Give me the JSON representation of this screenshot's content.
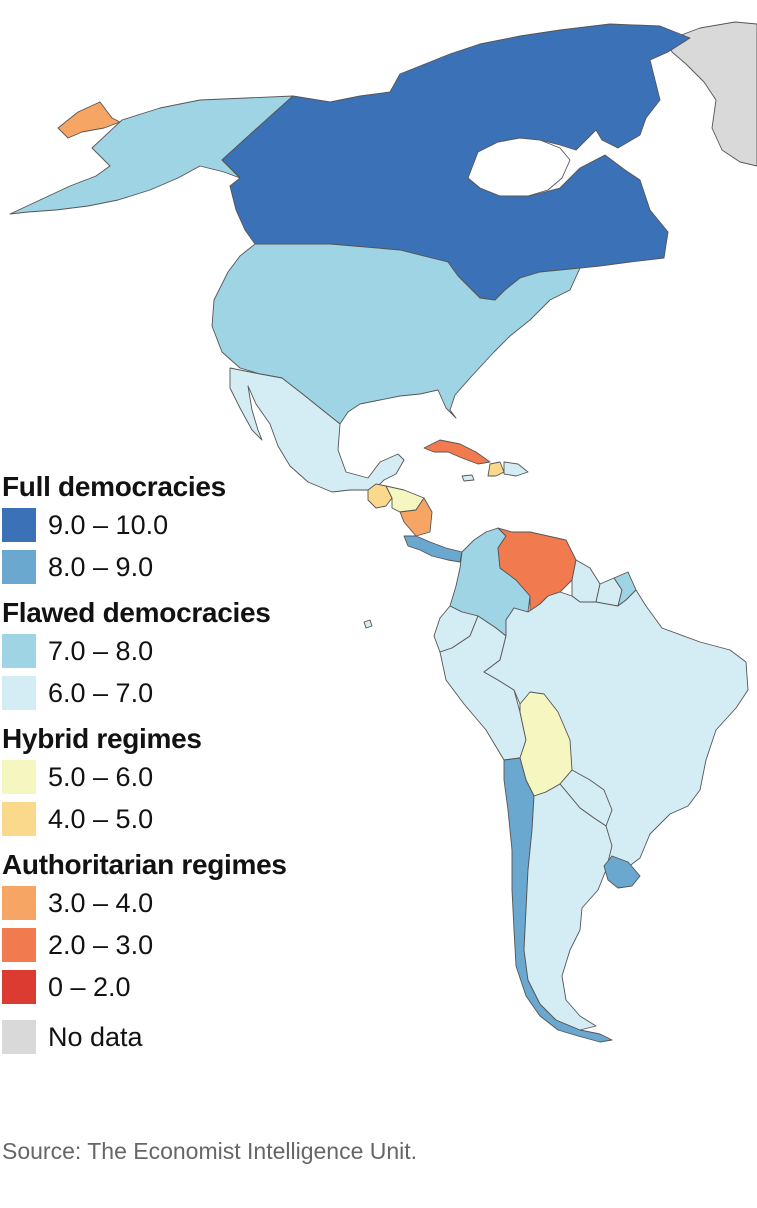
{
  "colors": {
    "full_9_10": "#3b72b7",
    "full_8_9": "#6aa8d0",
    "flawed_7_8": "#9ed4e4",
    "flawed_6_7": "#d4ecf3",
    "hybrid_5_6": "#f5f6c0",
    "hybrid_4_5": "#fbd98c",
    "auth_3_4": "#f6a565",
    "auth_2_3": "#f17a4f",
    "auth_0_2": "#dc3b32",
    "no_data": "#d9d9d9"
  },
  "legend": {
    "groups": [
      {
        "title": "Full democracies",
        "items": [
          {
            "label": "9.0 – 10.0",
            "color": "#3b72b7"
          },
          {
            "label": "8.0 – 9.0",
            "color": "#6aa8d0"
          }
        ]
      },
      {
        "title": "Flawed democracies",
        "items": [
          {
            "label": "7.0 – 8.0",
            "color": "#9ed4e4"
          },
          {
            "label": "6.0 – 7.0",
            "color": "#d4ecf3"
          }
        ]
      },
      {
        "title": "Hybrid regimes",
        "items": [
          {
            "label": "5.0 – 6.0",
            "color": "#f5f6c0"
          },
          {
            "label": "4.0 – 5.0",
            "color": "#fbd98c"
          }
        ]
      },
      {
        "title": "Authoritarian regimes",
        "items": [
          {
            "label": "3.0 – 4.0",
            "color": "#f6a565"
          },
          {
            "label": "2.0 – 3.0",
            "color": "#f17a4f"
          },
          {
            "label": "0 – 2.0",
            "color": "#dc3b32"
          }
        ]
      }
    ],
    "no_data": {
      "label": "No data",
      "color": "#d9d9d9"
    }
  },
  "source": "Source: The Economist Intelligence Unit."
}
